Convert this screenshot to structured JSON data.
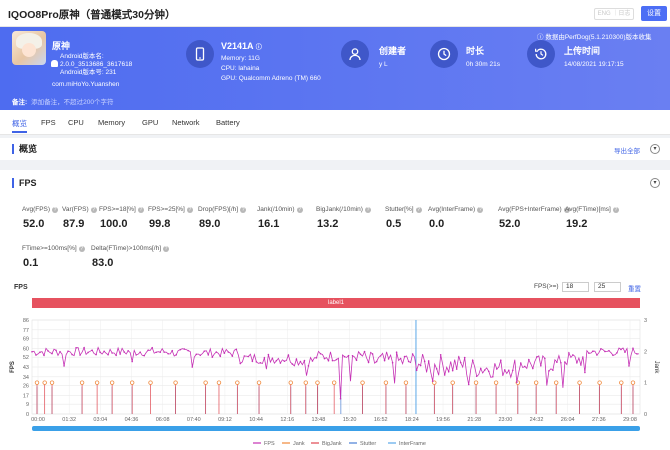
{
  "topbar": {
    "title": "IQOO8Pro原神（普通模式30分钟）",
    "ghost_label": "ENG ｜日志",
    "settings_label": "设置"
  },
  "app": {
    "name": "原神",
    "version_line1": "Android版本名:",
    "version_line2": "2.0.0_3513686_3617618",
    "version_code": "Android版本号: 231",
    "package": "com.miHoYo.Yuanshen"
  },
  "device": {
    "model": "V2141A",
    "memory": "Memory: 11G",
    "cpu": "CPU: lahaina",
    "gpu": "GPU: Qualcomm Adreno (TM) 660"
  },
  "creator": {
    "label": "创建者",
    "value": "y L"
  },
  "duration": {
    "label": "时长",
    "value": "0h 30m 21s"
  },
  "upload": {
    "label": "上传时间",
    "value": "14/08/2021 19:17:15"
  },
  "version_note": "数据由PerfDog(5.1.210300)版本收集",
  "remark": {
    "label": "备注:",
    "placeholder": "添加备注，不超过200个字符"
  },
  "tabs": [
    "概览",
    "FPS",
    "CPU",
    "Memory",
    "GPU",
    "Network",
    "Battery"
  ],
  "overview": {
    "title": "概览",
    "export_label": "导出全部"
  },
  "fps_section": {
    "title": "FPS"
  },
  "metrics": [
    {
      "label": "Avg(FPS)",
      "value": "52.0"
    },
    {
      "label": "Var(FPS)",
      "value": "87.9"
    },
    {
      "label": "FPS>=18[%]",
      "value": "100.0"
    },
    {
      "label": "FPS>=25[%]",
      "value": "99.8"
    },
    {
      "label": "Drop(FPS)[/h]",
      "value": "89.0"
    },
    {
      "label": "Jank(/10min)",
      "value": "16.1"
    },
    {
      "label": "BigJank(/10min)",
      "value": "13.2"
    },
    {
      "label": "Stutter[%]",
      "value": "0.5"
    },
    {
      "label": "Avg(InterFrame)",
      "value": "0.0"
    },
    {
      "label": "Avg(FPS+InterFrame)",
      "value": "52.0"
    },
    {
      "label": "Avg(FTime)[ms]",
      "value": "19.2"
    },
    {
      "label": "FTime>=100ms[%]",
      "value": "0.1"
    },
    {
      "label": "Delta(FTime)>100ms[/h]",
      "value": "83.0"
    }
  ],
  "chart_controls": {
    "chart_title": "FPS",
    "threshold_label": "FPS(>=)",
    "threshold_low": "18",
    "threshold_high": "25",
    "reset_label": "重置",
    "label_bar": "label1"
  },
  "colors": {
    "fps": "#c531b5",
    "jank": "#f0883a",
    "bigjank": "#e0464f",
    "stutter": "#4a7fd4",
    "interframe": "#5aa8e8",
    "accent": "#3f63e6",
    "header": "#5670f0"
  },
  "chart_data": {
    "type": "line",
    "title": "FPS",
    "ylabel_left": "FPS",
    "ylabel_right": "Jank",
    "ylim": [
      0,
      86
    ],
    "ylim_right": [
      0,
      3
    ],
    "yticks": [
      0,
      9,
      17,
      26,
      34,
      43,
      52,
      60,
      69,
      77,
      86
    ],
    "yticks_right": [
      0,
      1,
      2,
      3
    ],
    "xticks": [
      "00:00",
      "01:32",
      "03:04",
      "04:36",
      "06:08",
      "07:40",
      "09:12",
      "10:44",
      "12:16",
      "13:48",
      "15:20",
      "16:52",
      "18:24",
      "19:56",
      "21:28",
      "23:00",
      "24:32",
      "26:04",
      "27:36",
      "29:08"
    ],
    "grid": true,
    "legend_position": "bottom",
    "x_max_seconds": 1821,
    "fps_segments": [
      {
        "from": 0,
        "to": 420,
        "level": 57,
        "spread": 4
      },
      {
        "from": 420,
        "to": 620,
        "level": 56,
        "spread": 4
      },
      {
        "from": 620,
        "to": 780,
        "level": 51,
        "spread": 5
      },
      {
        "from": 780,
        "to": 850,
        "level": 49,
        "spread": 5
      },
      {
        "from": 850,
        "to": 1000,
        "level": 53,
        "spread": 5
      },
      {
        "from": 1000,
        "to": 1160,
        "level": 48,
        "spread": 9
      },
      {
        "from": 1160,
        "to": 1300,
        "level": 45,
        "spread": 10
      },
      {
        "from": 1300,
        "to": 1440,
        "level": 42,
        "spread": 9
      },
      {
        "from": 1440,
        "to": 1580,
        "level": 46,
        "spread": 8
      },
      {
        "from": 1580,
        "to": 1660,
        "level": 50,
        "spread": 7
      },
      {
        "from": 1660,
        "to": 1821,
        "level": 57,
        "spread": 4
      }
    ],
    "fps_dips": [
      {
        "t": 95,
        "fps": 44
      },
      {
        "t": 300,
        "fps": 48
      },
      {
        "t": 480,
        "fps": 43
      },
      {
        "t": 700,
        "fps": 41
      },
      {
        "t": 820,
        "fps": 35
      },
      {
        "t": 925,
        "fps": 14
      },
      {
        "t": 955,
        "fps": 30
      },
      {
        "t": 1085,
        "fps": 28
      },
      {
        "t": 1200,
        "fps": 30
      },
      {
        "t": 1310,
        "fps": 27
      },
      {
        "t": 1450,
        "fps": 29
      },
      {
        "t": 1540,
        "fps": 26
      },
      {
        "t": 1590,
        "fps": 24
      },
      {
        "t": 1655,
        "fps": 38
      },
      {
        "t": 1790,
        "fps": 44
      }
    ],
    "jank_times": [
      15,
      38,
      60,
      150,
      195,
      240,
      300,
      355,
      430,
      520,
      560,
      615,
      680,
      775,
      820,
      855,
      905,
      990,
      1060,
      1120,
      1205,
      1260,
      1330,
      1390,
      1455,
      1510,
      1570,
      1640,
      1700,
      1765,
      1800
    ],
    "jank_level": 1,
    "stutter_times": [
      15,
      60,
      150,
      240,
      300,
      430,
      520,
      615,
      680,
      775,
      820,
      855,
      925,
      990,
      1060,
      1120,
      1205,
      1260,
      1330,
      1390,
      1455,
      1510,
      1570,
      1640,
      1700,
      1765,
      1800
    ],
    "interframe_spike": {
      "t": 1150,
      "value": 3
    },
    "legend": [
      "FPS",
      "Jank",
      "BigJank",
      "Stutter",
      "InterFrame"
    ]
  }
}
